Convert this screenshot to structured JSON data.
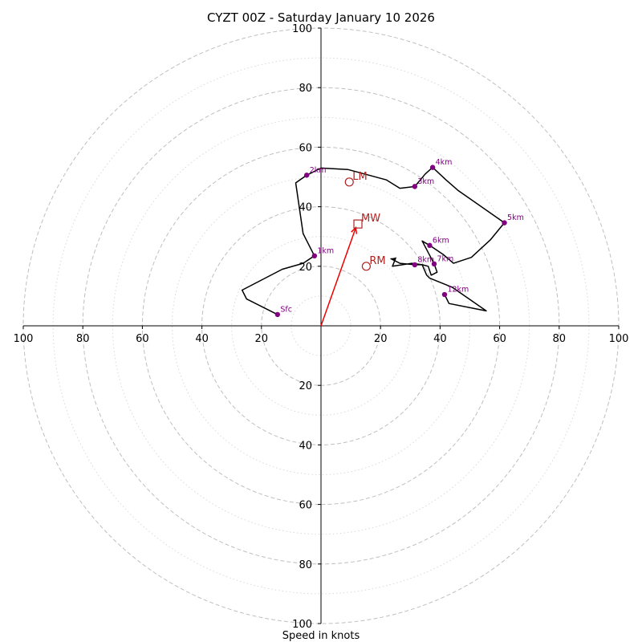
{
  "chart_data": {
    "type": "hodograph",
    "title": "CYZT 00Z - Saturday January 10 2026",
    "xlabel": "Speed in knots",
    "range": 100,
    "rings_major": [
      20,
      40,
      60,
      80,
      100
    ],
    "rings_minor": [
      10,
      30,
      50,
      70,
      90
    ],
    "axis_ticks_x": [
      {
        "value": -100,
        "label": "100"
      },
      {
        "value": -80,
        "label": "80"
      },
      {
        "value": -60,
        "label": "60"
      },
      {
        "value": -40,
        "label": "40"
      },
      {
        "value": -20,
        "label": "20"
      },
      {
        "value": 20,
        "label": "20"
      },
      {
        "value": 40,
        "label": "40"
      },
      {
        "value": 60,
        "label": "60"
      },
      {
        "value": 80,
        "label": "80"
      },
      {
        "value": 100,
        "label": "100"
      }
    ],
    "axis_ticks_y": [
      {
        "value": 100,
        "label": "100"
      },
      {
        "value": 80,
        "label": "80"
      },
      {
        "value": 60,
        "label": "60"
      },
      {
        "value": 40,
        "label": "40"
      },
      {
        "value": 20,
        "label": "20"
      },
      {
        "value": -20,
        "label": "20"
      },
      {
        "value": -40,
        "label": "40"
      },
      {
        "value": -60,
        "label": "60"
      },
      {
        "value": -80,
        "label": "80"
      },
      {
        "value": -100,
        "label": "100"
      }
    ],
    "trace": [
      [
        -14.6,
        3.8
      ],
      [
        -25,
        9
      ],
      [
        -26.5,
        12
      ],
      [
        -13,
        19
      ],
      [
        -6,
        21
      ],
      [
        -2.2,
        23.5
      ],
      [
        -6,
        31
      ],
      [
        -8.5,
        48
      ],
      [
        -4.8,
        50.6
      ],
      [
        0,
        53
      ],
      [
        9,
        52.5
      ],
      [
        22,
        49
      ],
      [
        26.5,
        46.2
      ],
      [
        31.5,
        46.8
      ],
      [
        35,
        51
      ],
      [
        37.5,
        53.2
      ],
      [
        42,
        49
      ],
      [
        46,
        45.5
      ],
      [
        61.6,
        34.6
      ],
      [
        57,
        29
      ],
      [
        50.5,
        23
      ],
      [
        44.5,
        21
      ],
      [
        41,
        24
      ],
      [
        36.5,
        27
      ],
      [
        34,
        28.5
      ],
      [
        38,
        20.8
      ],
      [
        39,
        18
      ],
      [
        37,
        17
      ],
      [
        36,
        20
      ],
      [
        34,
        20.5
      ],
      [
        31.5,
        20.5
      ],
      [
        26.5,
        21
      ],
      [
        23.5,
        22.5
      ],
      [
        25,
        22.5
      ],
      [
        24,
        20
      ],
      [
        30.5,
        21
      ],
      [
        34,
        20.5
      ],
      [
        35.5,
        17
      ],
      [
        36.5,
        16
      ],
      [
        44,
        13
      ],
      [
        50.5,
        8.5
      ],
      [
        55.5,
        5
      ],
      [
        43,
        7.5
      ],
      [
        41.5,
        10.5
      ]
    ],
    "markers": [
      {
        "label": "Sfc",
        "u": -14.6,
        "v": 3.8
      },
      {
        "label": "1km",
        "u": -2.2,
        "v": 23.5
      },
      {
        "label": "2km",
        "u": -4.8,
        "v": 50.6
      },
      {
        "label": "3km",
        "u": 31.5,
        "v": 46.8
      },
      {
        "label": "4km",
        "u": 37.5,
        "v": 53.2
      },
      {
        "label": "5km",
        "u": 61.6,
        "v": 34.6
      },
      {
        "label": "6km",
        "u": 36.5,
        "v": 27
      },
      {
        "label": "7km",
        "u": 38,
        "v": 20.8
      },
      {
        "label": "8km",
        "u": 31.5,
        "v": 20.5
      },
      {
        "label": "12km",
        "u": 41.5,
        "v": 10.5
      }
    ],
    "motions": [
      {
        "label": "LM",
        "u": 9.5,
        "v": 48.3,
        "shape": "circle"
      },
      {
        "label": "RM",
        "u": 15.2,
        "v": 20,
        "shape": "circle"
      },
      {
        "label": "MW",
        "u": 12.4,
        "v": 34.2,
        "shape": "square"
      }
    ],
    "arrow": {
      "from": [
        0,
        0
      ],
      "to": [
        11.7,
        33
      ]
    },
    "colors": {
      "trace": "#000000",
      "marker": "#800080",
      "motion": "#b22222",
      "arrow": "#ee0000",
      "ring_major": "#bfbfbf",
      "ring_minor": "#d9d9d9"
    }
  }
}
